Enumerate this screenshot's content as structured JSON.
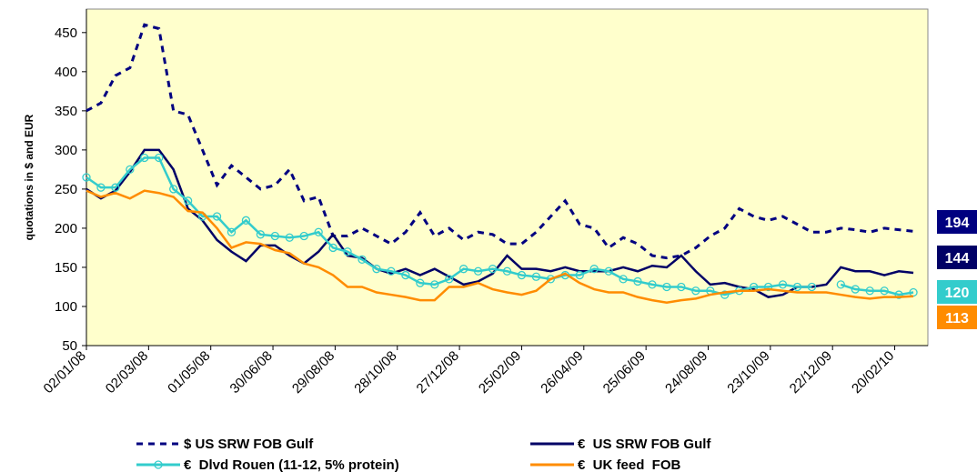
{
  "chart_data": {
    "type": "line",
    "y_label": "quotations in $ and EUR",
    "x": [
      "02/01/08",
      "16/01/08",
      "30/01/08",
      "13/02/08",
      "27/02/08",
      "12/03/08",
      "26/03/08",
      "09/04/08",
      "23/04/08",
      "07/05/08",
      "21/05/08",
      "04/06/08",
      "18/06/08",
      "02/07/08",
      "16/07/08",
      "30/07/08",
      "13/08/08",
      "27/08/08",
      "10/09/08",
      "24/09/08",
      "08/10/08",
      "22/10/08",
      "05/11/08",
      "19/11/08",
      "03/12/08",
      "17/12/08",
      "31/12/08",
      "14/01/09",
      "28/01/09",
      "11/02/09",
      "25/02/09",
      "11/03/09",
      "25/03/09",
      "08/04/09",
      "22/04/09",
      "06/05/09",
      "20/05/09",
      "03/06/09",
      "17/06/09",
      "01/07/09",
      "15/07/09",
      "29/07/09",
      "12/08/09",
      "26/08/09",
      "09/09/09",
      "23/09/09",
      "07/10/09",
      "21/10/09",
      "04/11/09",
      "18/11/09",
      "02/12/09",
      "16/12/09",
      "30/12/09",
      "13/01/10",
      "27/01/10",
      "10/02/10",
      "24/02/10",
      "10/03/10"
    ],
    "xlim": [
      "02/01/08",
      "24/03/10"
    ],
    "xticks": [
      "02/01/08",
      "02/03/08",
      "01/05/08",
      "30/06/08",
      "29/08/08",
      "28/10/08",
      "27/12/08",
      "25/02/09",
      "26/04/09",
      "25/06/09",
      "24/08/09",
      "23/10/09",
      "22/12/09",
      "20/02/10"
    ],
    "ylim": [
      50,
      480
    ],
    "yticks": [
      50,
      100,
      150,
      200,
      250,
      300,
      350,
      400,
      450
    ],
    "series": [
      {
        "name": "$ US SRW FOB Gulf",
        "color": "#000080",
        "dash": true,
        "end_label": 194,
        "values": [
          350,
          360,
          395,
          405,
          460,
          455,
          350,
          345,
          300,
          255,
          280,
          265,
          250,
          255,
          275,
          235,
          240,
          190,
          190,
          200,
          190,
          180,
          195,
          220,
          190,
          200,
          185,
          195,
          192,
          180,
          180,
          195,
          215,
          235,
          205,
          200,
          175,
          188,
          180,
          165,
          162,
          165,
          175,
          190,
          200,
          225,
          215,
          210,
          215,
          205,
          195,
          195,
          200,
          198,
          195,
          200,
          198,
          196
        ]
      },
      {
        "name": "€  US SRW FOB Gulf",
        "color": "#000066",
        "end_label": 144,
        "values": [
          250,
          238,
          248,
          272,
          300,
          300,
          275,
          225,
          210,
          185,
          170,
          158,
          178,
          178,
          165,
          155,
          170,
          192,
          165,
          162,
          148,
          142,
          148,
          140,
          148,
          138,
          128,
          132,
          142,
          165,
          148,
          148,
          145,
          150,
          145,
          145,
          145,
          150,
          145,
          152,
          150,
          165,
          145,
          128,
          130,
          125,
          122,
          112,
          115,
          125,
          125,
          128,
          150,
          145,
          145,
          140,
          145,
          143
        ]
      },
      {
        "name": "€  Dlvd Rouen (11-12, 5% protein)",
        "color": "#33CCCC",
        "marker": "circle",
        "end_label": 120,
        "values": [
          265,
          252,
          252,
          275,
          290,
          290,
          250,
          235,
          215,
          215,
          195,
          210,
          192,
          190,
          188,
          190,
          195,
          175,
          170,
          160,
          148,
          145,
          140,
          130,
          128,
          135,
          148,
          145,
          148,
          145,
          140,
          138,
          135,
          140,
          140,
          148,
          145,
          135,
          132,
          128,
          125,
          125,
          120,
          120,
          115,
          120,
          125,
          125,
          128,
          125,
          125,
          null,
          128,
          122,
          120,
          120,
          115,
          118
        ]
      },
      {
        "name": "€  UK feed  FOB",
        "color": "#FF8C00",
        "end_label": 113,
        "values": [
          248,
          240,
          245,
          238,
          248,
          245,
          240,
          222,
          220,
          200,
          175,
          182,
          180,
          172,
          168,
          155,
          150,
          140,
          125,
          125,
          118,
          115,
          112,
          108,
          108,
          125,
          125,
          130,
          122,
          118,
          115,
          120,
          135,
          142,
          130,
          122,
          118,
          118,
          112,
          108,
          105,
          108,
          110,
          115,
          118,
          120,
          120,
          122,
          120,
          118,
          118,
          118,
          115,
          112,
          110,
          112,
          112,
          113
        ]
      }
    ]
  }
}
